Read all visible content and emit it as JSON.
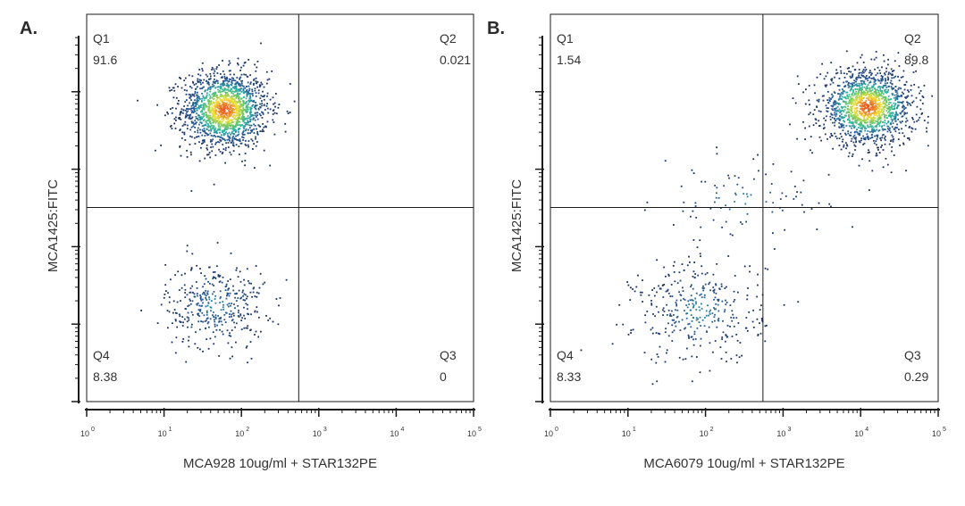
{
  "colors": {
    "density_low": "#1a2f5e",
    "density_mid": "#2bb5a6",
    "density_high": "#f1e23a",
    "density_peak": "#e8581f",
    "axis": "#1a1a1a"
  },
  "chart_data": [
    {
      "type": "scatter",
      "subtype": "flow-cytometry-density-plot",
      "panel_label": "A.",
      "xlabel": "MCA928 10ug/ml + STAR132PE",
      "ylabel": "MCA1425:FITC",
      "x_scale": "log",
      "y_scale": "log",
      "xlim": [
        1,
        100000
      ],
      "ylim": [
        1,
        100000
      ],
      "x_ticks": [
        {
          "base": "10",
          "exp": "0",
          "value": 1
        },
        {
          "base": "10",
          "exp": "1",
          "value": 10
        },
        {
          "base": "10",
          "exp": "2",
          "value": 100
        },
        {
          "base": "10",
          "exp": "3",
          "value": 1000
        },
        {
          "base": "10",
          "exp": "4",
          "value": 10000
        },
        {
          "base": "10",
          "exp": "5",
          "value": 100000
        }
      ],
      "gate": {
        "x": 550,
        "y": 320
      },
      "quadrants": [
        {
          "name": "Q1",
          "value": "91.6",
          "pos": "top-left"
        },
        {
          "name": "Q2",
          "value": "0.021",
          "pos": "top-right"
        },
        {
          "name": "Q3",
          "value": "0",
          "pos": "bottom-right"
        },
        {
          "name": "Q4",
          "value": "8.38",
          "pos": "bottom-left"
        }
      ],
      "populations": [
        {
          "x": 60,
          "y": 6000,
          "sx": 0.28,
          "sy": 0.25,
          "n": 1600,
          "peak": true
        },
        {
          "x": 45,
          "y": 18,
          "sx": 0.32,
          "sy": 0.28,
          "n": 380,
          "peak": false
        }
      ]
    },
    {
      "type": "scatter",
      "subtype": "flow-cytometry-density-plot",
      "panel_label": "B.",
      "xlabel": "MCA6079 10ug/ml + STAR132PE",
      "ylabel": "MCA1425:FITC",
      "x_scale": "log",
      "y_scale": "log",
      "xlim": [
        1,
        100000
      ],
      "ylim": [
        1,
        100000
      ],
      "x_ticks": [
        {
          "base": "10",
          "exp": "0",
          "value": 1
        },
        {
          "base": "10",
          "exp": "1",
          "value": 10
        },
        {
          "base": "10",
          "exp": "2",
          "value": 100
        },
        {
          "base": "10",
          "exp": "3",
          "value": 1000
        },
        {
          "base": "10",
          "exp": "4",
          "value": 10000
        },
        {
          "base": "10",
          "exp": "5",
          "value": 100000
        }
      ],
      "gate": {
        "x": 550,
        "y": 320
      },
      "quadrants": [
        {
          "name": "Q1",
          "value": "1.54",
          "pos": "top-left"
        },
        {
          "name": "Q2",
          "value": "89.8",
          "pos": "top-right"
        },
        {
          "name": "Q3",
          "value": "0.29",
          "pos": "bottom-right"
        },
        {
          "name": "Q4",
          "value": "8.33",
          "pos": "bottom-left"
        }
      ],
      "populations": [
        {
          "x": 12000,
          "y": 6500,
          "sx": 0.3,
          "sy": 0.24,
          "n": 1500,
          "peak": true
        },
        {
          "x": 80,
          "y": 15,
          "sx": 0.42,
          "sy": 0.34,
          "n": 360,
          "peak": false
        },
        {
          "x": 300,
          "y": 400,
          "sx": 0.55,
          "sy": 0.25,
          "n": 90,
          "peak": false
        }
      ]
    }
  ]
}
